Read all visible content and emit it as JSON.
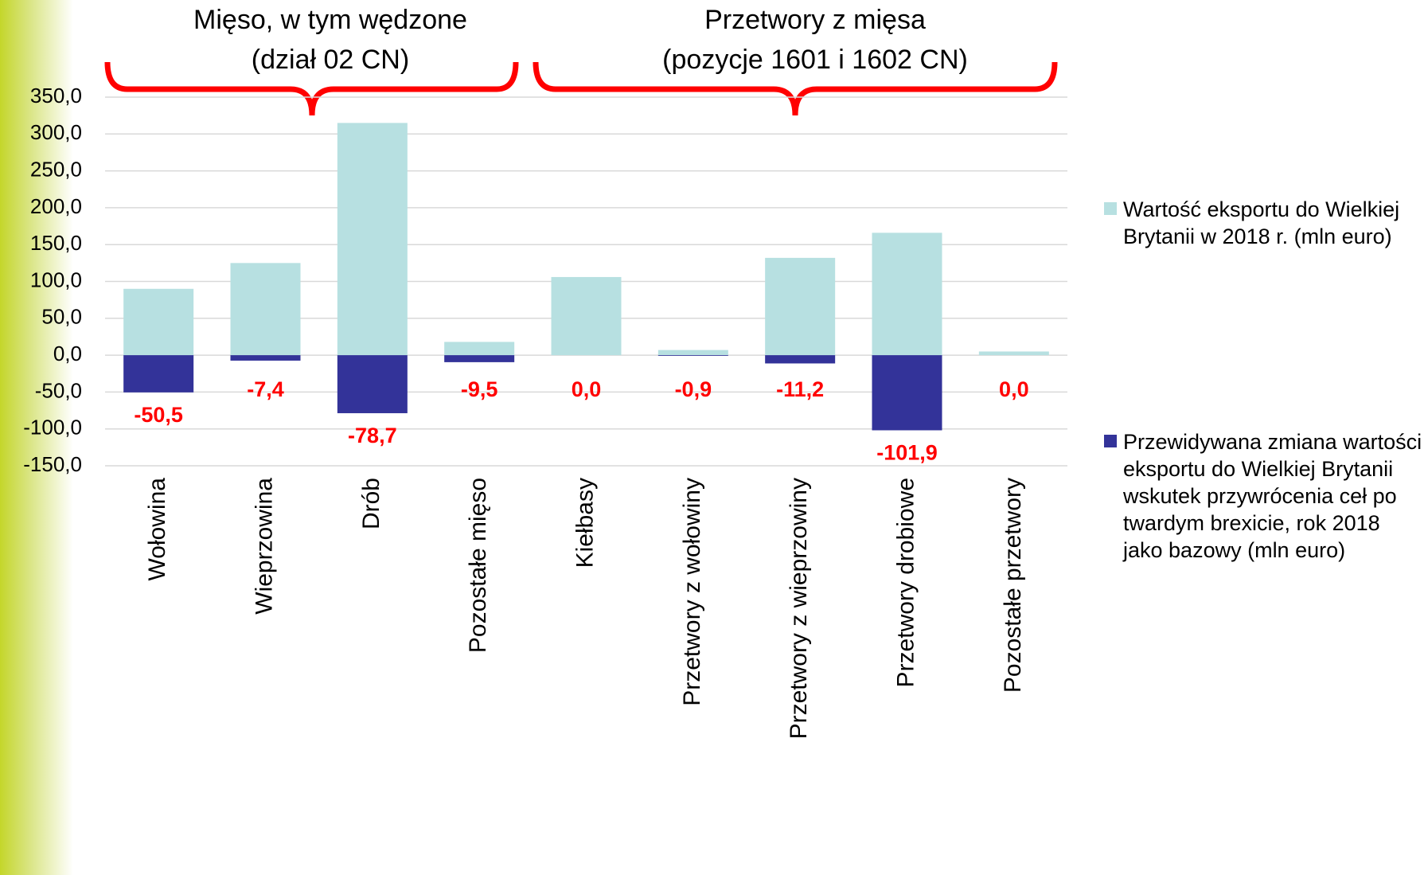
{
  "chart_data": {
    "type": "bar",
    "annotations": [
      {
        "lines": [
          "Mięso, w tym wędzone",
          "(dział 02 CN)"
        ]
      },
      {
        "lines": [
          "Przetwory z mięsa",
          "(pozycje 1601 i 1602 CN)"
        ]
      }
    ],
    "categories": [
      "Wołowina",
      "Wieprzowina",
      "Drób",
      "Pozostałe mięso",
      "Kiełbasy",
      "Przetwory z wołowiny",
      "Przetwory z wieprzowiny",
      "Przetwory drobiowe",
      "Pozostałe przetwory"
    ],
    "series": [
      {
        "name": "Wartość eksportu do Wielkiej Brytanii w 2018 r. (mln euro)",
        "color": "#b7e0e1",
        "values": [
          90,
          125,
          315,
          18,
          106,
          7,
          132,
          166,
          5
        ]
      },
      {
        "name": "Przewidywana zmiana wartości eksportu do Wielkiej Brytanii wskutek przywrócenia ceł po twardym brexicie, rok 2018 jako bazowy (mln euro)",
        "color": "#333399",
        "values": [
          -50.5,
          -7.4,
          -78.7,
          -9.5,
          0.0,
          -0.9,
          -11.2,
          -101.9,
          0.0
        ],
        "value_labels": [
          "-50,5",
          "-7,4",
          "-78,7",
          "-9,5",
          "0,0",
          "-0,9",
          "-11,2",
          "-101,9",
          "0,0"
        ],
        "value_label_color": "#ff0000"
      }
    ],
    "ylim": [
      -150,
      350
    ],
    "yticks": [
      {
        "value": -150,
        "label": "-150,0"
      },
      {
        "value": -100,
        "label": "-100,0"
      },
      {
        "value": -50,
        "label": "-50,0"
      },
      {
        "value": 0,
        "label": "0,0"
      },
      {
        "value": 50,
        "label": "50,0"
      },
      {
        "value": 100,
        "label": "100,0"
      },
      {
        "value": 150,
        "label": "150,0"
      },
      {
        "value": 200,
        "label": "200,0"
      },
      {
        "value": 250,
        "label": "250,0"
      },
      {
        "value": 300,
        "label": "300,0"
      },
      {
        "value": 350,
        "label": "350,0"
      }
    ],
    "grid": true,
    "legend": "right"
  }
}
